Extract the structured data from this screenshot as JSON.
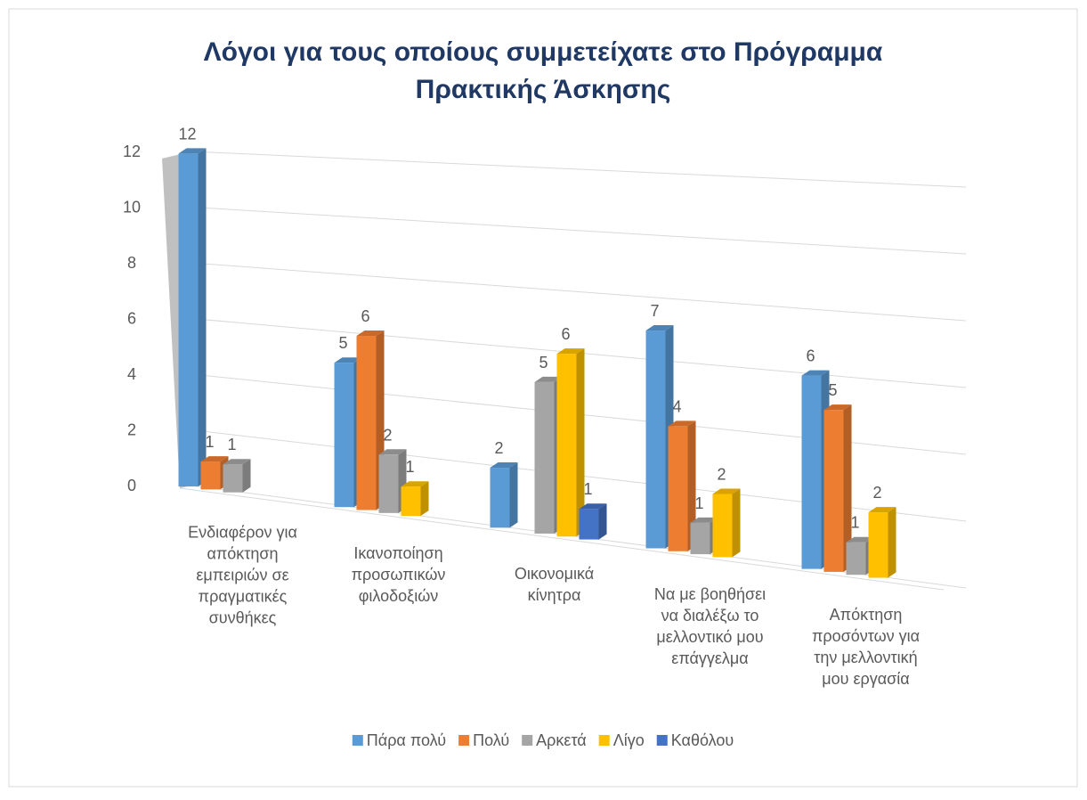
{
  "chart_data": {
    "type": "bar3d",
    "title": "Λόγοι για τους οποίους συμμετείχατε στο Πρόγραμμα Πρακτικής Άσκησης",
    "categories": [
      "Ενδιαφέρον για απόκτηση εμπειριών σε πραγματικές συνθήκες",
      "Ικανοποίηση προσωπικών φιλοδοξιών",
      "Οικονομικά κίνητρα",
      "Να με βοηθήσει να διαλέξω το μελλοντικό μου επάγγελμα",
      "Απόκτηση προσόντων για την μελλοντική μου εργασία"
    ],
    "series": [
      {
        "name": "Πάρα πολύ",
        "color": "#5b9bd5",
        "values": [
          12,
          5,
          2,
          7,
          6
        ]
      },
      {
        "name": "Πολύ",
        "color": "#ed7d31",
        "values": [
          1,
          6,
          null,
          4,
          5
        ]
      },
      {
        "name": "Αρκετά",
        "color": "#a5a5a5",
        "values": [
          1,
          2,
          5,
          1,
          1
        ]
      },
      {
        "name": "Λίγο",
        "color": "#ffc000",
        "values": [
          null,
          1,
          6,
          2,
          2
        ]
      },
      {
        "name": "Καθόλου",
        "color": "#4472c4",
        "values": [
          null,
          null,
          1,
          null,
          null
        ]
      }
    ],
    "ylim": [
      0,
      12
    ],
    "yticks": [
      0,
      2,
      4,
      6,
      8,
      10,
      12
    ],
    "grid": true,
    "legend": "bottom"
  }
}
